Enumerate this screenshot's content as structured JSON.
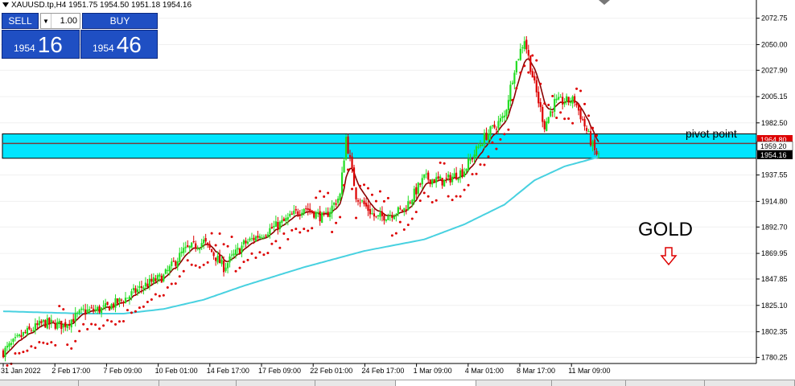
{
  "header": {
    "symbol_info": "XAUUSD.tp,H4  1951.75 1954.50 1951.18 1954.16"
  },
  "trade_panel": {
    "sell_label": "SELL",
    "buy_label": "BUY",
    "lot_value": "1.00",
    "sell_price_small": "1954",
    "sell_price_big": "16",
    "buy_price_small": "1954",
    "buy_price_big": "46"
  },
  "colors": {
    "bull": "#22dd22",
    "bear": "#dd0000",
    "sar": "#dd0000",
    "ema_fast": "#8b0000",
    "ma_slow": "#48d1e0",
    "pivot_band": "#00e5ff",
    "price_tag": "#dd0000"
  },
  "chart_data": {
    "type": "candlestick",
    "symbol": "XAUUSD.tp",
    "timeframe": "H4",
    "ylim": [
      1775,
      2085
    ],
    "y_ticks": [
      "2072.75",
      "2050.00",
      "2027.90",
      "2005.15",
      "1982.50",
      "1937.55",
      "1914.80",
      "1892.70",
      "1869.95",
      "1847.85",
      "1825.10",
      "1802.35",
      "1780.25"
    ],
    "x_ticks": [
      "31 Jan 2022",
      "2 Feb 17:00",
      "7 Feb 09:00",
      "10 Feb 01:00",
      "14 Feb 17:00",
      "17 Feb 09:00",
      "22 Feb 01:00",
      "24 Feb 17:00",
      "1 Mar 09:00",
      "4 Mar 01:00",
      "8 Mar 17:00",
      "11 Mar 09:00"
    ],
    "price_tags": [
      "1964.80",
      "1959.20",
      "1954.16"
    ],
    "pivot_zone": [
      1952,
      1973
    ],
    "pivot_level": 1964.8,
    "annotations": {
      "pivot_label": "pivot point",
      "gold_label": "GOLD",
      "arrow": "down"
    },
    "close_anchors": [
      [
        0,
        1785
      ],
      [
        10,
        1800
      ],
      [
        20,
        1810
      ],
      [
        30,
        1808
      ],
      [
        40,
        1820
      ],
      [
        50,
        1822
      ],
      [
        60,
        1830
      ],
      [
        70,
        1842
      ],
      [
        80,
        1850
      ],
      [
        90,
        1872
      ],
      [
        100,
        1880
      ],
      [
        110,
        1858
      ],
      [
        120,
        1878
      ],
      [
        130,
        1888
      ],
      [
        140,
        1897
      ],
      [
        150,
        1910
      ],
      [
        160,
        1900
      ],
      [
        168,
        1920
      ],
      [
        171,
        1970
      ],
      [
        176,
        1920
      ],
      [
        186,
        1900
      ],
      [
        200,
        1908
      ],
      [
        210,
        1935
      ],
      [
        220,
        1932
      ],
      [
        230,
        1942
      ],
      [
        240,
        1970
      ],
      [
        250,
        1988
      ],
      [
        255,
        2030
      ],
      [
        260,
        2055
      ],
      [
        265,
        2015
      ],
      [
        270,
        1980
      ],
      [
        275,
        2000
      ],
      [
        285,
        2002
      ],
      [
        290,
        1980
      ],
      [
        295,
        1958
      ],
      [
        297,
        1954
      ]
    ],
    "slow_ma": [
      [
        0,
        1820
      ],
      [
        40,
        1818
      ],
      [
        60,
        1818
      ],
      [
        80,
        1822
      ],
      [
        100,
        1830
      ],
      [
        120,
        1842
      ],
      [
        150,
        1858
      ],
      [
        180,
        1872
      ],
      [
        210,
        1882
      ],
      [
        230,
        1895
      ],
      [
        250,
        1912
      ],
      [
        265,
        1933
      ],
      [
        280,
        1945
      ],
      [
        297,
        1953
      ]
    ]
  }
}
